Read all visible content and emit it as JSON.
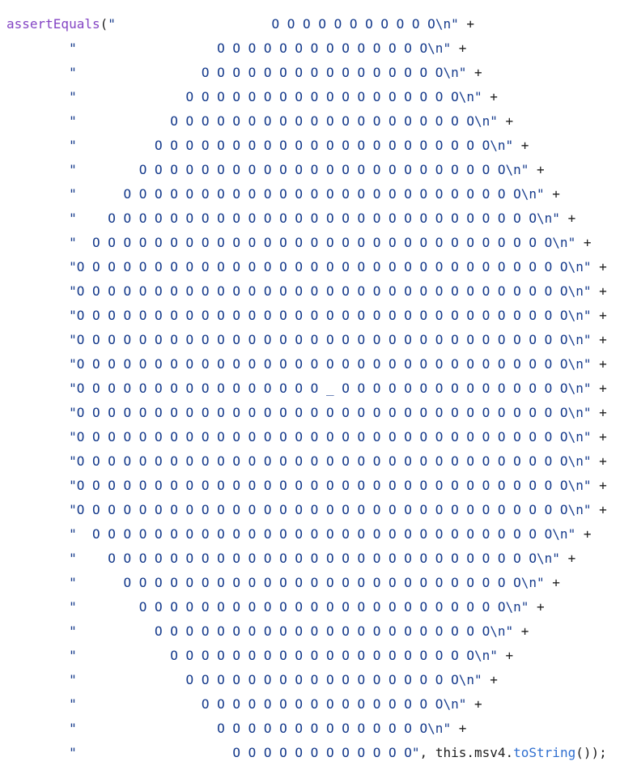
{
  "code": {
    "lines": [
      {
        "parts": [
          {
            "text": "assertEquals",
            "color": "#8445c4"
          },
          {
            "text": "(",
            "color": "#1e1e1e"
          },
          {
            "text": "\"                    O O O O O O O O O O O\\n\"",
            "color": "#163b8c"
          },
          {
            "text": " +",
            "color": "#1e1e1e"
          }
        ]
      },
      {
        "parts": [
          {
            "text": "        \"                  O O O O O O O O O O O O O O\\n\"",
            "color": "#163b8c"
          },
          {
            "text": " +",
            "color": "#1e1e1e"
          }
        ]
      },
      {
        "parts": [
          {
            "text": "        \"                O O O O O O O O O O O O O O O O\\n\"",
            "color": "#163b8c"
          },
          {
            "text": " +",
            "color": "#1e1e1e"
          }
        ]
      },
      {
        "parts": [
          {
            "text": "        \"              O O O O O O O O O O O O O O O O O O\\n\"",
            "color": "#163b8c"
          },
          {
            "text": " +",
            "color": "#1e1e1e"
          }
        ]
      },
      {
        "parts": [
          {
            "text": "        \"            O O O O O O O O O O O O O O O O O O O O\\n\"",
            "color": "#163b8c"
          },
          {
            "text": " +",
            "color": "#1e1e1e"
          }
        ]
      },
      {
        "parts": [
          {
            "text": "        \"          O O O O O O O O O O O O O O O O O O O O O O\\n\"",
            "color": "#163b8c"
          },
          {
            "text": " +",
            "color": "#1e1e1e"
          }
        ]
      },
      {
        "parts": [
          {
            "text": "        \"        O O O O O O O O O O O O O O O O O O O O O O O O\\n\"",
            "color": "#163b8c"
          },
          {
            "text": " +",
            "color": "#1e1e1e"
          }
        ]
      },
      {
        "parts": [
          {
            "text": "        \"      O O O O O O O O O O O O O O O O O O O O O O O O O O\\n\"",
            "color": "#163b8c"
          },
          {
            "text": " +",
            "color": "#1e1e1e"
          }
        ]
      },
      {
        "parts": [
          {
            "text": "        \"    O O O O O O O O O O O O O O O O O O O O O O O O O O O O\\n\"",
            "color": "#163b8c"
          },
          {
            "text": " +",
            "color": "#1e1e1e"
          }
        ]
      },
      {
        "parts": [
          {
            "text": "        \"  O O O O O O O O O O O O O O O O O O O O O O O O O O O O O O\\n\"",
            "color": "#163b8c"
          },
          {
            "text": " +",
            "color": "#1e1e1e"
          }
        ]
      },
      {
        "parts": [
          {
            "text": "        \"O O O O O O O O O O O O O O O O O O O O O O O O O O O O O O O O\\n\"",
            "color": "#163b8c"
          },
          {
            "text": " +",
            "color": "#1e1e1e"
          }
        ]
      },
      {
        "parts": [
          {
            "text": "        \"O O O O O O O O O O O O O O O O O O O O O O O O O O O O O O O O\\n\"",
            "color": "#163b8c"
          },
          {
            "text": " +",
            "color": "#1e1e1e"
          }
        ]
      },
      {
        "parts": [
          {
            "text": "        \"O O O O O O O O O O O O O O O O O O O O O O O O O O O O O O O O\\n\"",
            "color": "#163b8c"
          },
          {
            "text": " +",
            "color": "#1e1e1e"
          }
        ]
      },
      {
        "parts": [
          {
            "text": "        \"O O O O O O O O O O O O O O O O O O O O O O O O O O O O O O O O\\n\"",
            "color": "#163b8c"
          },
          {
            "text": " +",
            "color": "#1e1e1e"
          }
        ]
      },
      {
        "parts": [
          {
            "text": "        \"O O O O O O O O O O O O O O O O O O O O O O O O O O O O O O O O\\n\"",
            "color": "#163b8c"
          },
          {
            "text": " +",
            "color": "#1e1e1e"
          }
        ]
      },
      {
        "parts": [
          {
            "text": "        \"O O O O O O O O O O O O O O O O _ O O O O O O O O O O O O O O O\\n\"",
            "color": "#163b8c"
          },
          {
            "text": " +",
            "color": "#1e1e1e"
          }
        ]
      },
      {
        "parts": [
          {
            "text": "        \"O O O O O O O O O O O O O O O O O O O O O O O O O O O O O O O O\\n\"",
            "color": "#163b8c"
          },
          {
            "text": " +",
            "color": "#1e1e1e"
          }
        ]
      },
      {
        "parts": [
          {
            "text": "        \"O O O O O O O O O O O O O O O O O O O O O O O O O O O O O O O O\\n\"",
            "color": "#163b8c"
          },
          {
            "text": " +",
            "color": "#1e1e1e"
          }
        ]
      },
      {
        "parts": [
          {
            "text": "        \"O O O O O O O O O O O O O O O O O O O O O O O O O O O O O O O O\\n\"",
            "color": "#163b8c"
          },
          {
            "text": " +",
            "color": "#1e1e1e"
          }
        ]
      },
      {
        "parts": [
          {
            "text": "        \"O O O O O O O O O O O O O O O O O O O O O O O O O O O O O O O O\\n\"",
            "color": "#163b8c"
          },
          {
            "text": " +",
            "color": "#1e1e1e"
          }
        ]
      },
      {
        "parts": [
          {
            "text": "        \"O O O O O O O O O O O O O O O O O O O O O O O O O O O O O O O O\\n\"",
            "color": "#163b8c"
          },
          {
            "text": " +",
            "color": "#1e1e1e"
          }
        ]
      },
      {
        "parts": [
          {
            "text": "        \"  O O O O O O O O O O O O O O O O O O O O O O O O O O O O O O\\n\"",
            "color": "#163b8c"
          },
          {
            "text": " +",
            "color": "#1e1e1e"
          }
        ]
      },
      {
        "parts": [
          {
            "text": "        \"    O O O O O O O O O O O O O O O O O O O O O O O O O O O O\\n\"",
            "color": "#163b8c"
          },
          {
            "text": " +",
            "color": "#1e1e1e"
          }
        ]
      },
      {
        "parts": [
          {
            "text": "        \"      O O O O O O O O O O O O O O O O O O O O O O O O O O\\n\"",
            "color": "#163b8c"
          },
          {
            "text": " +",
            "color": "#1e1e1e"
          }
        ]
      },
      {
        "parts": [
          {
            "text": "        \"        O O O O O O O O O O O O O O O O O O O O O O O O\\n\"",
            "color": "#163b8c"
          },
          {
            "text": " +",
            "color": "#1e1e1e"
          }
        ]
      },
      {
        "parts": [
          {
            "text": "        \"          O O O O O O O O O O O O O O O O O O O O O O\\n\"",
            "color": "#163b8c"
          },
          {
            "text": " +",
            "color": "#1e1e1e"
          }
        ]
      },
      {
        "parts": [
          {
            "text": "        \"            O O O O O O O O O O O O O O O O O O O O\\n\"",
            "color": "#163b8c"
          },
          {
            "text": " +",
            "color": "#1e1e1e"
          }
        ]
      },
      {
        "parts": [
          {
            "text": "        \"              O O O O O O O O O O O O O O O O O O\\n\"",
            "color": "#163b8c"
          },
          {
            "text": " +",
            "color": "#1e1e1e"
          }
        ]
      },
      {
        "parts": [
          {
            "text": "        \"                O O O O O O O O O O O O O O O O\\n\"",
            "color": "#163b8c"
          },
          {
            "text": " +",
            "color": "#1e1e1e"
          }
        ]
      },
      {
        "parts": [
          {
            "text": "        \"                  O O O O O O O O O O O O O O\\n\"",
            "color": "#163b8c"
          },
          {
            "text": " +",
            "color": "#1e1e1e"
          }
        ]
      },
      {
        "parts": [
          {
            "text": "        \"                    O O O O O O O O O O O O\"",
            "color": "#163b8c"
          },
          {
            "text": ", this.msv4.",
            "color": "#1e1e1e"
          },
          {
            "text": "toString",
            "color": "#2f6fd0"
          },
          {
            "text": "());",
            "color": "#1e1e1e"
          }
        ]
      }
    ]
  }
}
